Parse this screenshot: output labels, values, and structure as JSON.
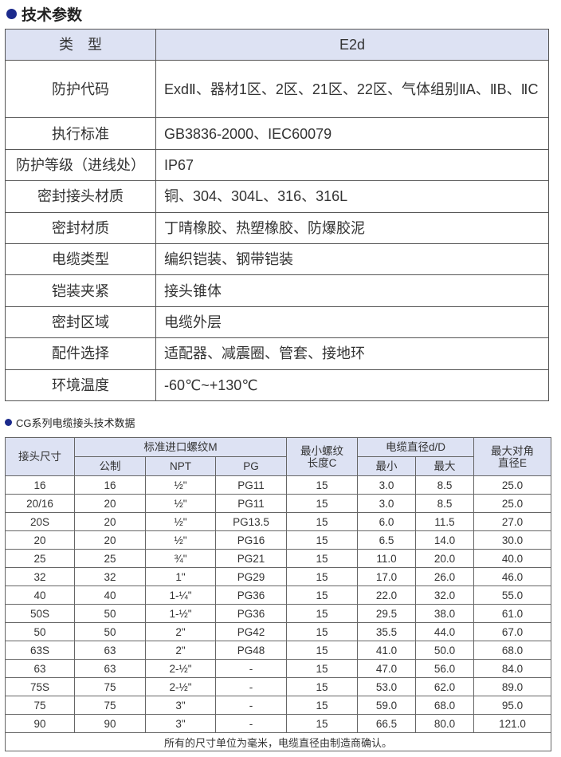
{
  "section1": {
    "title": "技术参数",
    "header": {
      "key": "类　型",
      "value": "E2d"
    },
    "rows": [
      {
        "key": "防护代码",
        "value": "ExdⅡ、器材1区、2区、21区、22区、气体组别ⅡA、ⅡB、ⅡC"
      },
      {
        "key": "执行标准",
        "value": "GB3836-2000、IEC60079"
      },
      {
        "key": "防护等级（进线处）",
        "value": "IP67"
      },
      {
        "key": "密封接头材质",
        "value": "铜、304、304L、316、316L"
      },
      {
        "key": "密封材质",
        "value": "丁晴橡胶、热塑橡胶、防爆胶泥"
      },
      {
        "key": "电缆类型",
        "value": "编织铠装、钢带铠装"
      },
      {
        "key": "铠装夹紧",
        "value": "接头锥体"
      },
      {
        "key": "密封区域",
        "value": "电缆外层"
      },
      {
        "key": "配件选择",
        "value": "适配器、减震圈、管套、接地环"
      },
      {
        "key": "环境温度",
        "value": "-60℃~+130℃"
      }
    ]
  },
  "section2": {
    "title": "CG系列电缆接头技术数据",
    "headers": {
      "size": "接头尺寸",
      "thread": "标准进口螺纹M",
      "metric": "公制",
      "npt": "NPT",
      "pg": "PG",
      "minlen": "最小螺纹长度C",
      "cable": "电缆直径d/D",
      "min": "最小",
      "max": "最大",
      "diag": "最大对角直径E"
    },
    "rows": [
      [
        "16",
        "16",
        "½\"",
        "PG11",
        "15",
        "3.0",
        "8.5",
        "25.0"
      ],
      [
        "20/16",
        "20",
        "½\"",
        "PG11",
        "15",
        "3.0",
        "8.5",
        "25.0"
      ],
      [
        "20S",
        "20",
        "½\"",
        "PG13.5",
        "15",
        "6.0",
        "11.5",
        "27.0"
      ],
      [
        "20",
        "20",
        "½\"",
        "PG16",
        "15",
        "6.5",
        "14.0",
        "30.0"
      ],
      [
        "25",
        "25",
        "¾\"",
        "PG21",
        "15",
        "11.0",
        "20.0",
        "40.0"
      ],
      [
        "32",
        "32",
        "1\"",
        "PG29",
        "15",
        "17.0",
        "26.0",
        "46.0"
      ],
      [
        "40",
        "40",
        "1-¼\"",
        "PG36",
        "15",
        "22.0",
        "32.0",
        "55.0"
      ],
      [
        "50S",
        "50",
        "1-½\"",
        "PG36",
        "15",
        "29.5",
        "38.0",
        "61.0"
      ],
      [
        "50",
        "50",
        "2\"",
        "PG42",
        "15",
        "35.5",
        "44.0",
        "67.0"
      ],
      [
        "63S",
        "63",
        "2\"",
        "PG48",
        "15",
        "41.0",
        "50.0",
        "68.0"
      ],
      [
        "63",
        "63",
        "2-½\"",
        "-",
        "15",
        "47.0",
        "56.0",
        "84.0"
      ],
      [
        "75S",
        "75",
        "2-½\"",
        "-",
        "15",
        "53.0",
        "62.0",
        "89.0"
      ],
      [
        "75",
        "75",
        "3\"",
        "-",
        "15",
        "59.0",
        "68.0",
        "95.0"
      ],
      [
        "90",
        "90",
        "3\"",
        "-",
        "15",
        "66.5",
        "80.0",
        "121.0"
      ]
    ],
    "footer": "所有的尺寸单位为毫米，电缆直径由制造商确认。"
  },
  "colors": {
    "accent": "#1c2a8c",
    "header_bg": "#dde2f3"
  }
}
